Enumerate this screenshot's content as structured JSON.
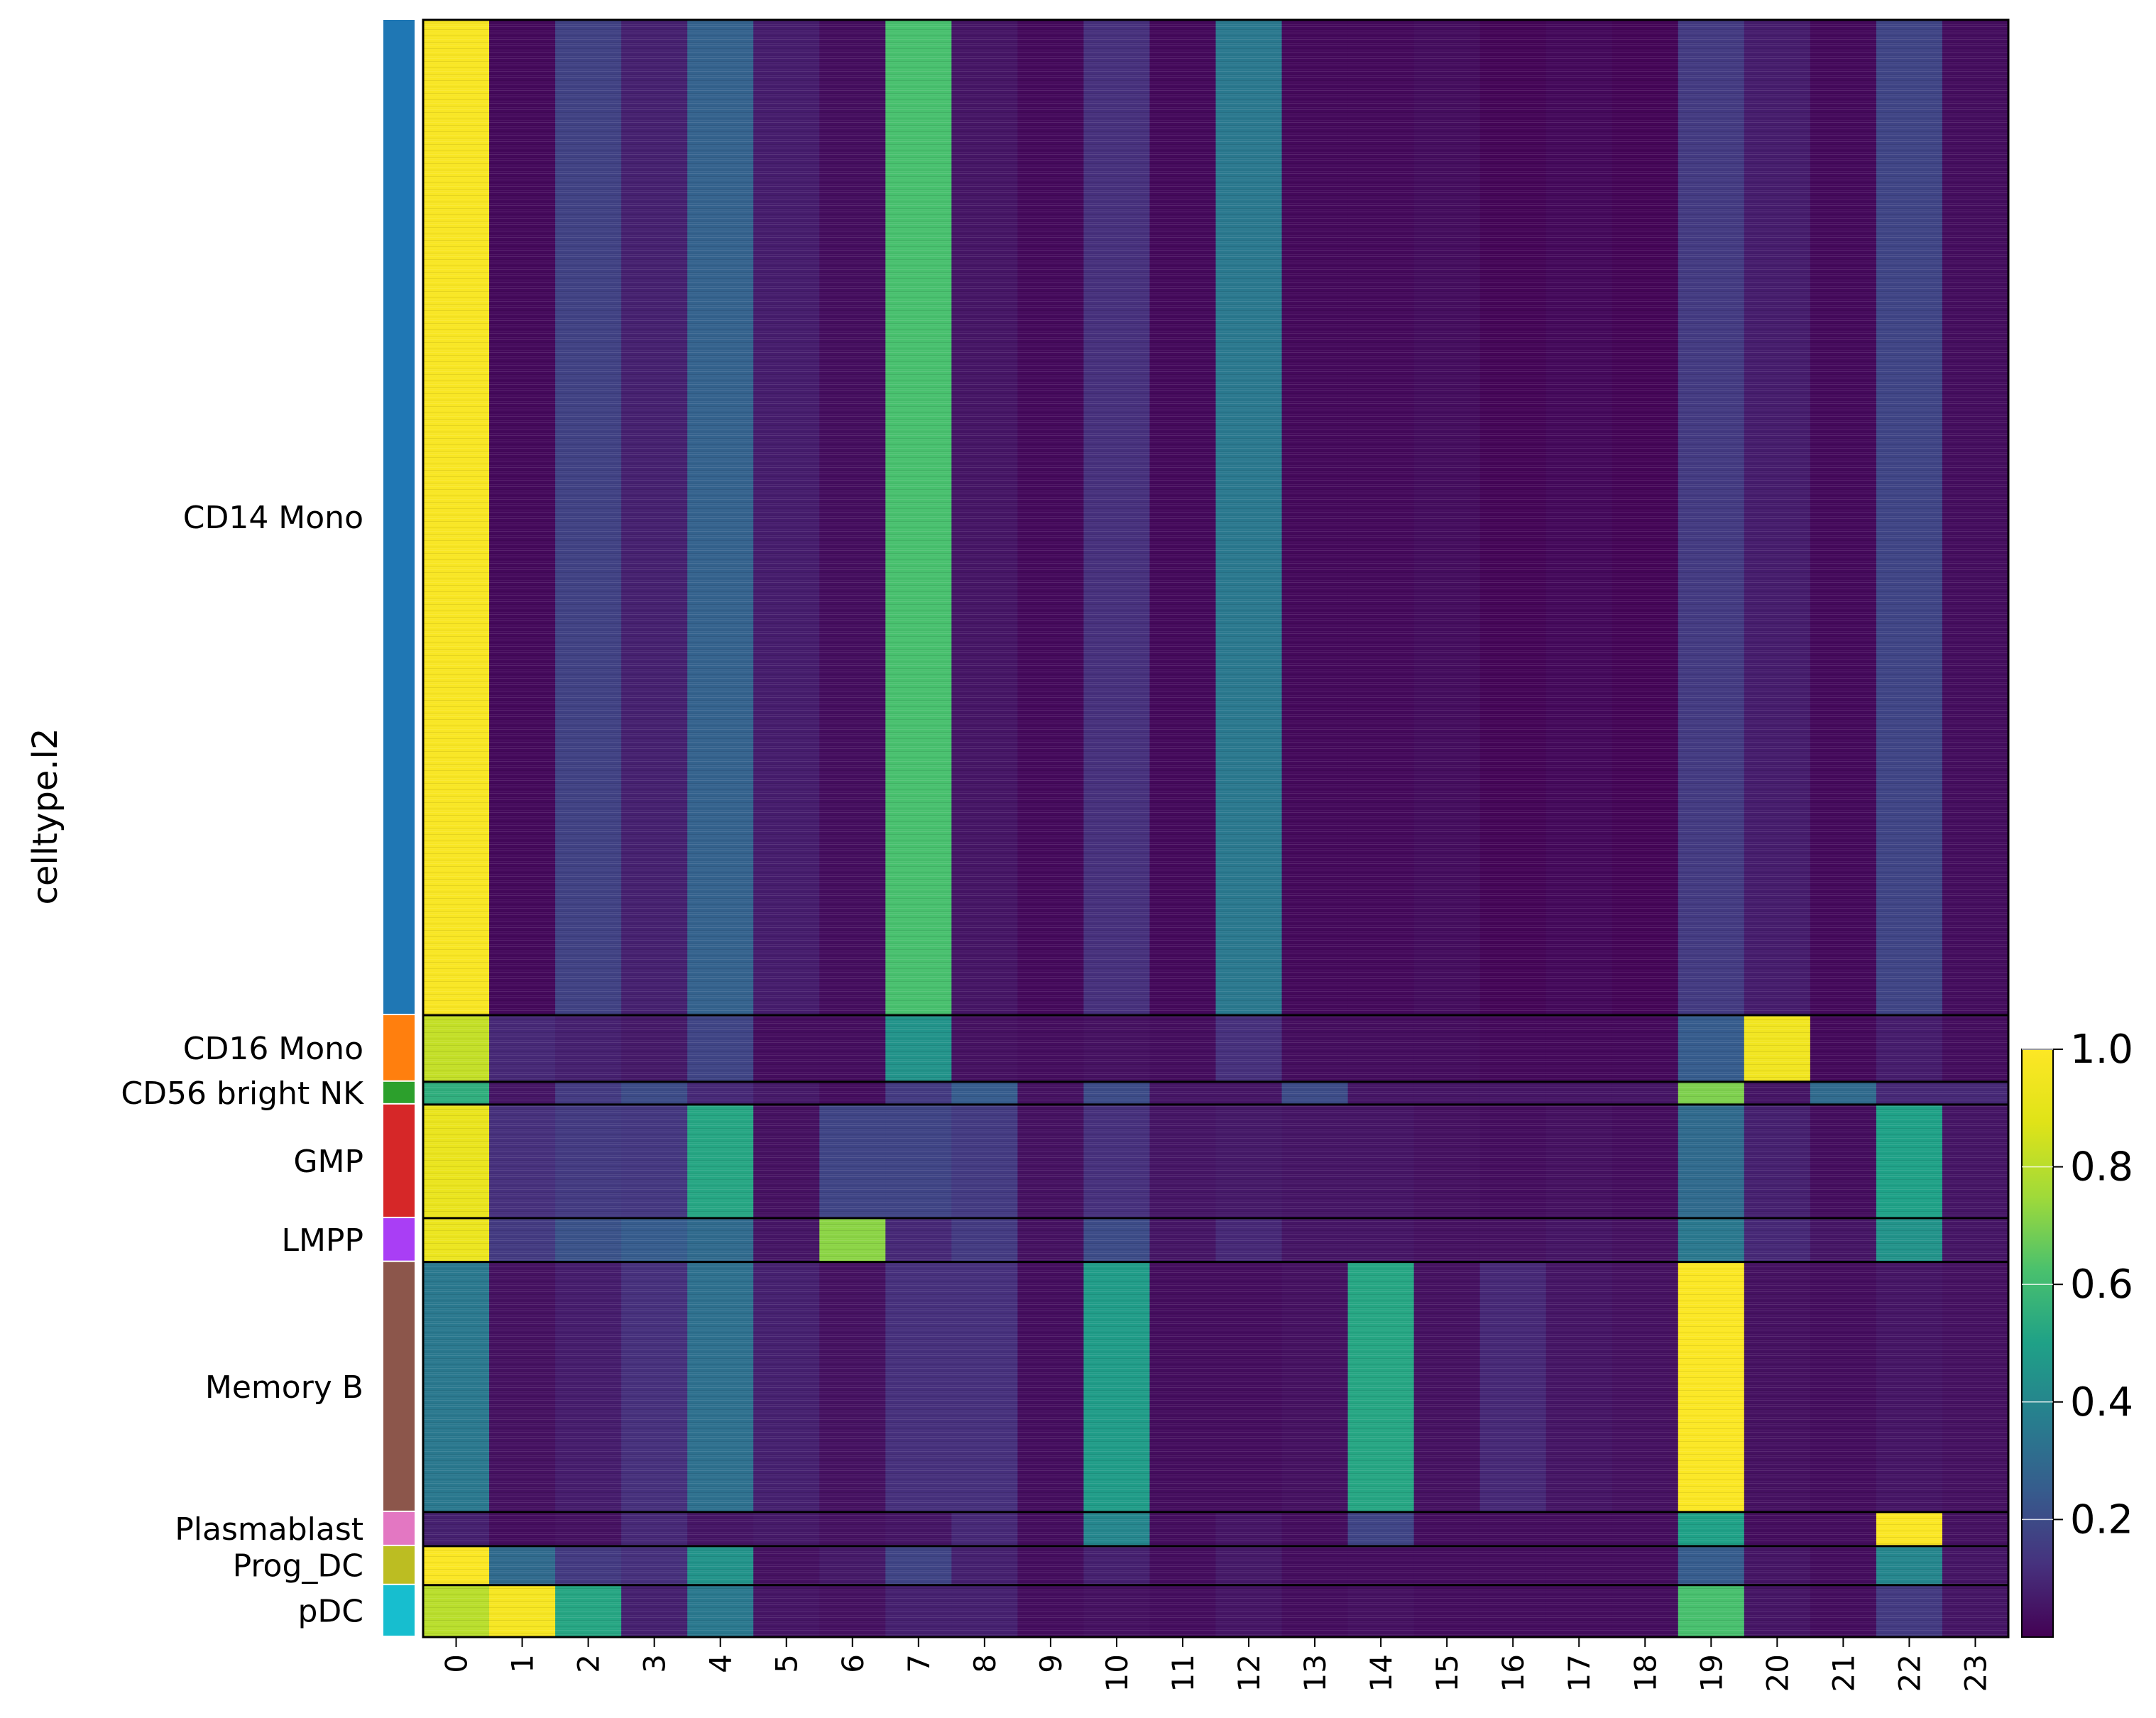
{
  "chart_data": {
    "type": "heatmap",
    "ylabel": "celltype.l2",
    "xlabel": "",
    "columns": [
      "0",
      "1",
      "2",
      "3",
      "4",
      "5",
      "6",
      "7",
      "8",
      "9",
      "10",
      "11",
      "12",
      "13",
      "14",
      "15",
      "16",
      "17",
      "18",
      "19",
      "20",
      "21",
      "22",
      "23"
    ],
    "groups": [
      {
        "label": "CD14 Mono",
        "color": "#1f77b4",
        "fraction": 0.613,
        "values": [
          0.98,
          0.02,
          0.17,
          0.08,
          0.27,
          0.07,
          0.03,
          0.62,
          0.05,
          0.02,
          0.12,
          0.02,
          0.35,
          0.02,
          0.02,
          0.03,
          0.01,
          0.02,
          0.01,
          0.15,
          0.07,
          0.02,
          0.18,
          0.03
        ]
      },
      {
        "label": "CD16 Mono",
        "color": "#ff7f0e",
        "fraction": 0.041,
        "values": [
          0.82,
          0.1,
          0.08,
          0.06,
          0.18,
          0.03,
          0.03,
          0.45,
          0.04,
          0.03,
          0.04,
          0.03,
          0.12,
          0.03,
          0.03,
          0.03,
          0.02,
          0.02,
          0.02,
          0.25,
          0.95,
          0.02,
          0.07,
          0.03
        ]
      },
      {
        "label": "CD56 bright NK",
        "color": "#2ca02c",
        "fraction": 0.014,
        "values": [
          0.55,
          0.05,
          0.15,
          0.2,
          0.1,
          0.06,
          0.03,
          0.15,
          0.25,
          0.04,
          0.2,
          0.05,
          0.05,
          0.2,
          0.05,
          0.05,
          0.05,
          0.05,
          0.05,
          0.7,
          0.05,
          0.3,
          0.1,
          0.1
        ]
      },
      {
        "label": "GMP",
        "color": "#d62728",
        "fraction": 0.07,
        "values": [
          0.92,
          0.12,
          0.15,
          0.14,
          0.52,
          0.04,
          0.18,
          0.18,
          0.15,
          0.04,
          0.12,
          0.05,
          0.06,
          0.05,
          0.05,
          0.04,
          0.03,
          0.04,
          0.03,
          0.3,
          0.08,
          0.03,
          0.5,
          0.05
        ]
      },
      {
        "label": "LMPP",
        "color": "#a93ef5",
        "fraction": 0.027,
        "values": [
          0.93,
          0.15,
          0.22,
          0.25,
          0.3,
          0.05,
          0.72,
          0.1,
          0.15,
          0.04,
          0.2,
          0.05,
          0.1,
          0.05,
          0.05,
          0.04,
          0.04,
          0.05,
          0.04,
          0.35,
          0.1,
          0.05,
          0.45,
          0.05
        ]
      },
      {
        "label": "Memory B",
        "color": "#8c564b",
        "fraction": 0.154,
        "values": [
          0.35,
          0.04,
          0.07,
          0.12,
          0.32,
          0.08,
          0.04,
          0.12,
          0.12,
          0.03,
          0.48,
          0.03,
          0.03,
          0.04,
          0.52,
          0.04,
          0.1,
          0.05,
          0.04,
          0.99,
          0.04,
          0.03,
          0.05,
          0.04
        ]
      },
      {
        "label": "Plasmablast",
        "color": "#e377c2",
        "fraction": 0.021,
        "values": [
          0.08,
          0.03,
          0.04,
          0.1,
          0.05,
          0.06,
          0.04,
          0.05,
          0.1,
          0.03,
          0.4,
          0.03,
          0.05,
          0.03,
          0.18,
          0.03,
          0.03,
          0.03,
          0.03,
          0.5,
          0.03,
          0.03,
          0.99,
          0.04
        ]
      },
      {
        "label": "Prog_DC",
        "color": "#bcbd22",
        "fraction": 0.024,
        "values": [
          0.99,
          0.3,
          0.15,
          0.12,
          0.45,
          0.04,
          0.06,
          0.18,
          0.08,
          0.03,
          0.08,
          0.03,
          0.06,
          0.03,
          0.03,
          0.03,
          0.03,
          0.03,
          0.03,
          0.25,
          0.05,
          0.03,
          0.4,
          0.05
        ]
      },
      {
        "label": "pDC",
        "color": "#17becf",
        "fraction": 0.032,
        "values": [
          0.8,
          0.97,
          0.52,
          0.08,
          0.35,
          0.05,
          0.04,
          0.08,
          0.08,
          0.03,
          0.04,
          0.03,
          0.05,
          0.03,
          0.04,
          0.03,
          0.03,
          0.03,
          0.03,
          0.62,
          0.05,
          0.03,
          0.15,
          0.05
        ]
      }
    ],
    "colorbar": {
      "colormap": "viridis",
      "ticks": [
        "0.2",
        "0.4",
        "0.6",
        "0.8",
        "1.0"
      ],
      "tick_values": [
        0.2,
        0.4,
        0.6,
        0.8,
        1.0
      ],
      "range": [
        0.0,
        1.0
      ]
    },
    "legend_placement": "right",
    "grid": false
  }
}
